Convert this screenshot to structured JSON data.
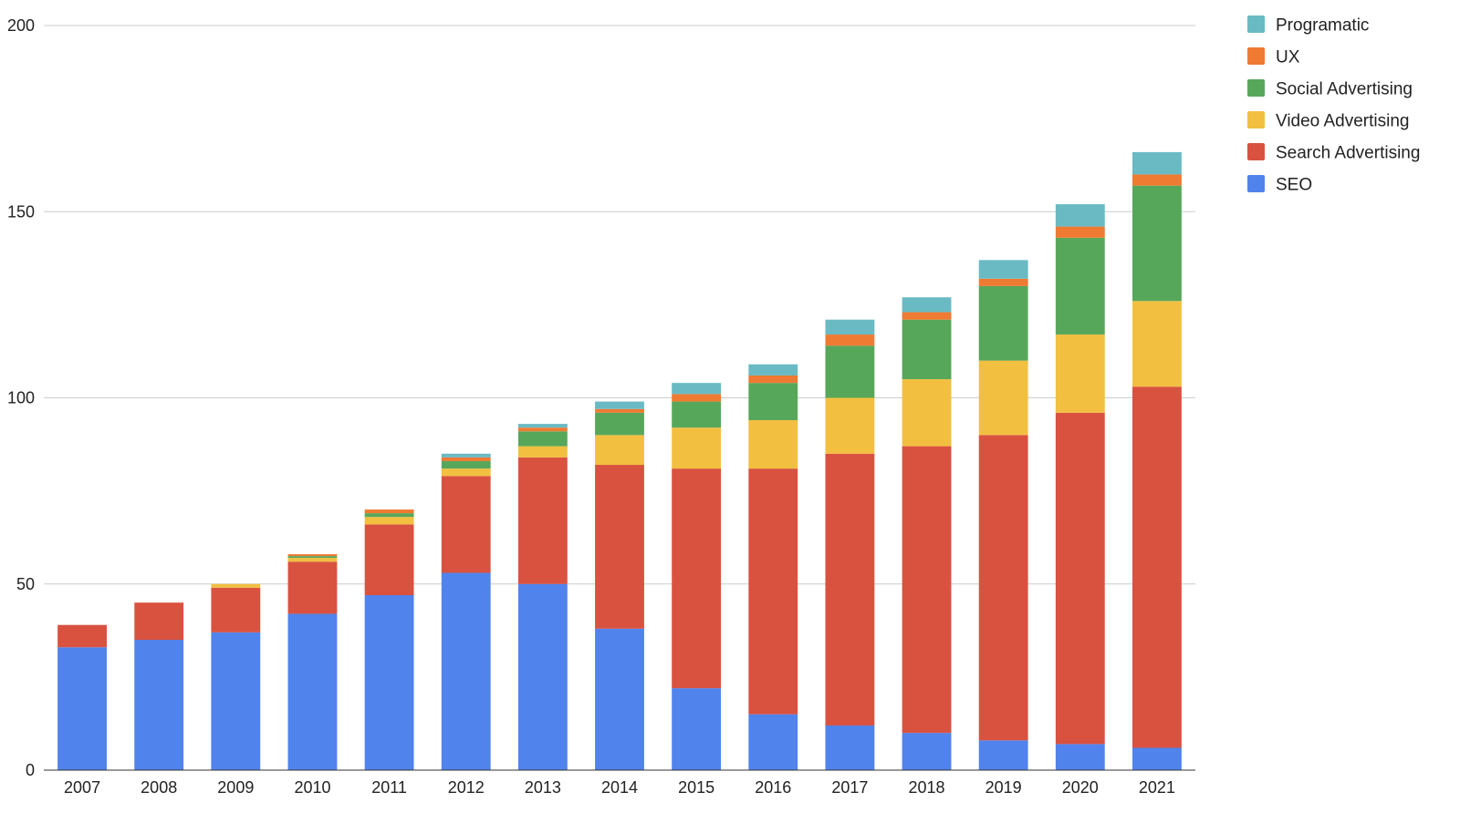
{
  "chart_data": {
    "type": "bar",
    "stacked": true,
    "title": "",
    "xlabel": "",
    "ylabel": "",
    "ylim": [
      0,
      200
    ],
    "yticks": [
      0,
      50,
      100,
      150,
      200
    ],
    "grid": true,
    "legend_position": "right",
    "categories": [
      "2007",
      "2008",
      "2009",
      "2010",
      "2011",
      "2012",
      "2013",
      "2014",
      "2015",
      "2016",
      "2017",
      "2018",
      "2019",
      "2020",
      "2021"
    ],
    "series": [
      {
        "name": "SEO",
        "color": "#5083EC",
        "values": [
          33,
          35,
          37,
          42,
          47,
          53,
          50,
          38,
          22,
          15,
          12,
          10,
          8,
          7,
          6
        ]
      },
      {
        "name": "Search Advertising",
        "color": "#D95240",
        "values": [
          6,
          10,
          12,
          14,
          19,
          26,
          34,
          44,
          59,
          66,
          73,
          77,
          82,
          89,
          97
        ]
      },
      {
        "name": "Video Advertising",
        "color": "#F2BF41",
        "values": [
          0,
          0,
          1,
          1,
          2,
          2,
          3,
          8,
          11,
          13,
          15,
          18,
          20,
          21,
          23
        ]
      },
      {
        "name": "Social Advertising",
        "color": "#57A75B",
        "values": [
          0,
          0,
          0,
          0.5,
          1,
          2,
          4,
          6,
          7,
          10,
          14,
          16,
          20,
          26,
          31
        ]
      },
      {
        "name": "UX",
        "color": "#EF7A32",
        "values": [
          0,
          0,
          0,
          0.5,
          1,
          1,
          1,
          1,
          2,
          2,
          3,
          2,
          2,
          3,
          3
        ]
      },
      {
        "name": "Programatic",
        "color": "#69BAC3",
        "values": [
          0,
          0,
          0,
          0,
          0,
          1,
          1,
          2,
          3,
          3,
          4,
          4,
          5,
          6,
          6
        ]
      }
    ]
  }
}
